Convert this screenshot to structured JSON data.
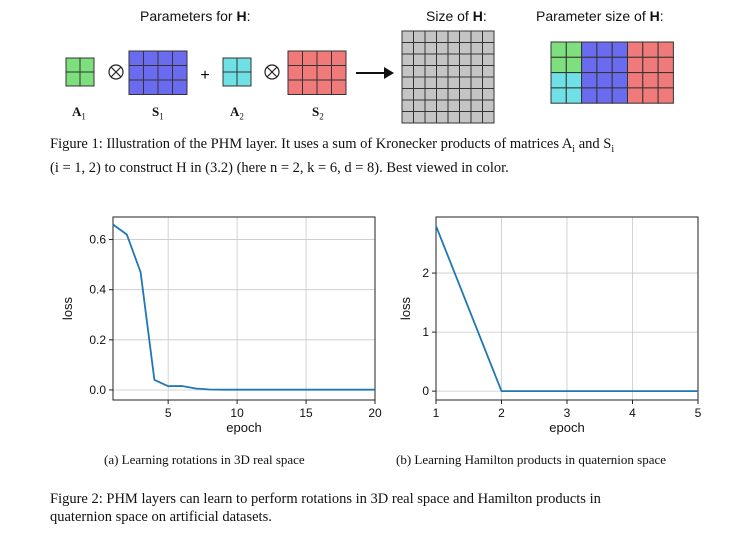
{
  "figure1": {
    "params_label": "Parameters for ",
    "params_bold": "H",
    "params_colon": ":",
    "size_label": "Size of ",
    "size_bold": "H",
    "size_colon": ":",
    "param_size_label": "Parameter size of ",
    "param_size_bold": "H",
    "param_size_colon": ":",
    "plus": "+",
    "labels": [
      {
        "main": "A",
        "sub": "1"
      },
      {
        "main": "S",
        "sub": "1"
      },
      {
        "main": "A",
        "sub": "2"
      },
      {
        "main": "S",
        "sub": "2"
      }
    ],
    "colors": {
      "green": "#7ddf7d",
      "blue": "#6b6bef",
      "cyan": "#6fe0e6",
      "red": "#f07a7a",
      "gray": "#c4c4c4"
    },
    "caption_line1": "Figure 1: Illustration of the PHM layer. It uses a sum of Kronecker products of matrices A",
    "caption_sub_i": "i",
    "caption_and": " and S",
    "caption_line2": "(i = 1, 2) to construct H in (3.2) (here n = 2, k = 6, d = 8). Best viewed in color."
  },
  "chart_data": [
    {
      "type": "line",
      "title": "",
      "xlabel": "epoch",
      "ylabel": "loss",
      "xlim": [
        1,
        20
      ],
      "ylim": [
        -0.04,
        0.69
      ],
      "xticks": [
        5,
        10,
        15,
        20
      ],
      "yticks": [
        0.0,
        0.2,
        0.4,
        0.6
      ],
      "ytick_labels": [
        "0.0",
        "0.2",
        "0.4",
        "0.6"
      ],
      "grid": true,
      "series": [
        {
          "name": "loss",
          "color": "#1f77b4",
          "x": [
            1,
            2,
            3,
            4,
            5,
            6,
            7,
            8,
            9,
            10,
            11,
            12,
            13,
            14,
            15,
            16,
            17,
            18,
            19,
            20
          ],
          "values": [
            0.66,
            0.62,
            0.47,
            0.04,
            0.015,
            0.016,
            0.006,
            0.002,
            0.001,
            0.001,
            0.001,
            0.001,
            0.001,
            0.001,
            0.001,
            0.001,
            0.001,
            0.001,
            0.001,
            0.001
          ]
        }
      ],
      "caption": "(a) Learning rotations in 3D real space"
    },
    {
      "type": "line",
      "title": "",
      "xlabel": "epoch",
      "ylabel": "loss",
      "xlim": [
        1,
        5
      ],
      "ylim": [
        -0.15,
        2.95
      ],
      "xticks": [
        1,
        2,
        3,
        4,
        5
      ],
      "yticks": [
        0,
        1,
        2
      ],
      "ytick_labels": [
        "0",
        "1",
        "2"
      ],
      "grid": true,
      "series": [
        {
          "name": "loss",
          "color": "#1f77b4",
          "x": [
            1,
            2,
            3,
            4,
            5
          ],
          "values": [
            2.8,
            0.0,
            0.0,
            0.0,
            0.0
          ]
        }
      ],
      "caption": "(b) Learning Hamilton products in quaternion space"
    }
  ],
  "figure2": {
    "caption_line1": "Figure 2: PHM layers can learn to perform rotations in 3D real space and Hamilton products in",
    "caption_line2": "quaternion space on artificial datasets."
  }
}
